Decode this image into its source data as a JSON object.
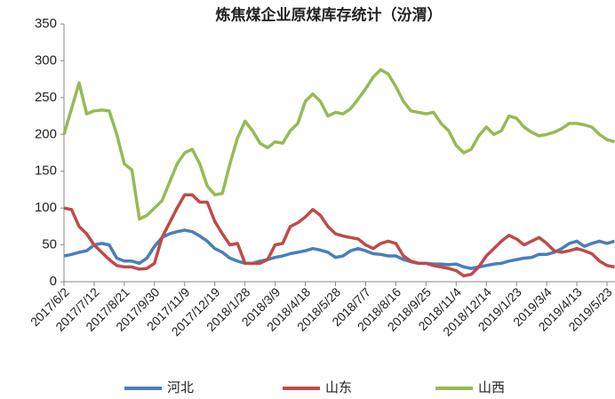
{
  "chart_data": {
    "type": "line",
    "title": "炼焦煤企业原煤库存统计（汾渭）",
    "categories": [
      "2017/6/2",
      null,
      null,
      null,
      "2017/7/12",
      null,
      null,
      null,
      "2017/8/21",
      null,
      null,
      null,
      "2017/9/30",
      null,
      null,
      null,
      "2017/11/9",
      null,
      null,
      null,
      "2017/12/19",
      null,
      null,
      null,
      "2018/1/28",
      null,
      null,
      null,
      "2018/3/9",
      null,
      null,
      null,
      "2018/4/18",
      null,
      null,
      null,
      "2018/5/28",
      null,
      null,
      null,
      "2018/7/7",
      null,
      null,
      null,
      "2018/8/16",
      null,
      null,
      null,
      "2018/9/25",
      null,
      null,
      null,
      "2018/11/4",
      null,
      null,
      null,
      "2018/12/14",
      null,
      null,
      null,
      "2019/1/23",
      null,
      null,
      null,
      "2019/3/4",
      null,
      null,
      null,
      "2019/4/13",
      null,
      null,
      null,
      "2019/5/23",
      null
    ],
    "series": [
      {
        "name": "河北",
        "color": "#4a7ebb",
        "values": [
          35,
          37,
          40,
          42,
          50,
          52,
          50,
          32,
          28,
          28,
          25,
          32,
          48,
          60,
          65,
          68,
          70,
          68,
          62,
          55,
          45,
          40,
          32,
          28,
          25,
          25,
          28,
          30,
          33,
          35,
          38,
          40,
          42,
          45,
          43,
          40,
          33,
          35,
          42,
          45,
          42,
          38,
          37,
          35,
          35,
          30,
          27,
          25,
          25,
          24,
          24,
          23,
          24,
          20,
          18,
          20,
          22,
          24,
          25,
          28,
          30,
          32,
          33,
          37,
          37,
          40,
          45,
          52,
          55,
          48,
          52,
          55,
          52,
          55
        ]
      },
      {
        "name": "山东",
        "color": "#be4b48",
        "values": [
          100,
          98,
          75,
          65,
          50,
          40,
          30,
          22,
          20,
          20,
          17,
          18,
          25,
          60,
          80,
          100,
          118,
          118,
          108,
          108,
          82,
          65,
          50,
          52,
          25,
          25,
          25,
          30,
          50,
          52,
          75,
          80,
          88,
          98,
          90,
          75,
          65,
          62,
          60,
          58,
          50,
          45,
          52,
          55,
          52,
          35,
          28,
          25,
          25,
          22,
          20,
          18,
          15,
          8,
          10,
          20,
          35,
          45,
          55,
          63,
          58,
          50,
          55,
          60,
          52,
          42,
          40,
          42,
          45,
          42,
          38,
          28,
          22,
          20
        ]
      },
      {
        "name": "山西",
        "color": "#98b954",
        "values": [
          200,
          235,
          270,
          228,
          232,
          233,
          232,
          200,
          160,
          152,
          85,
          90,
          100,
          110,
          135,
          160,
          175,
          180,
          160,
          130,
          118,
          120,
          160,
          195,
          218,
          205,
          188,
          182,
          190,
          188,
          205,
          215,
          245,
          255,
          245,
          225,
          230,
          228,
          235,
          248,
          262,
          278,
          288,
          282,
          265,
          245,
          232,
          230,
          228,
          230,
          215,
          205,
          185,
          175,
          180,
          198,
          210,
          200,
          205,
          225,
          222,
          210,
          203,
          198,
          200,
          203,
          208,
          215,
          215,
          213,
          210,
          200,
          193,
          190
        ]
      }
    ],
    "ylim": [
      0,
      350
    ],
    "yticks": [
      0,
      50,
      100,
      150,
      200,
      250,
      300,
      350
    ],
    "grid": false,
    "legend": "bottom"
  }
}
